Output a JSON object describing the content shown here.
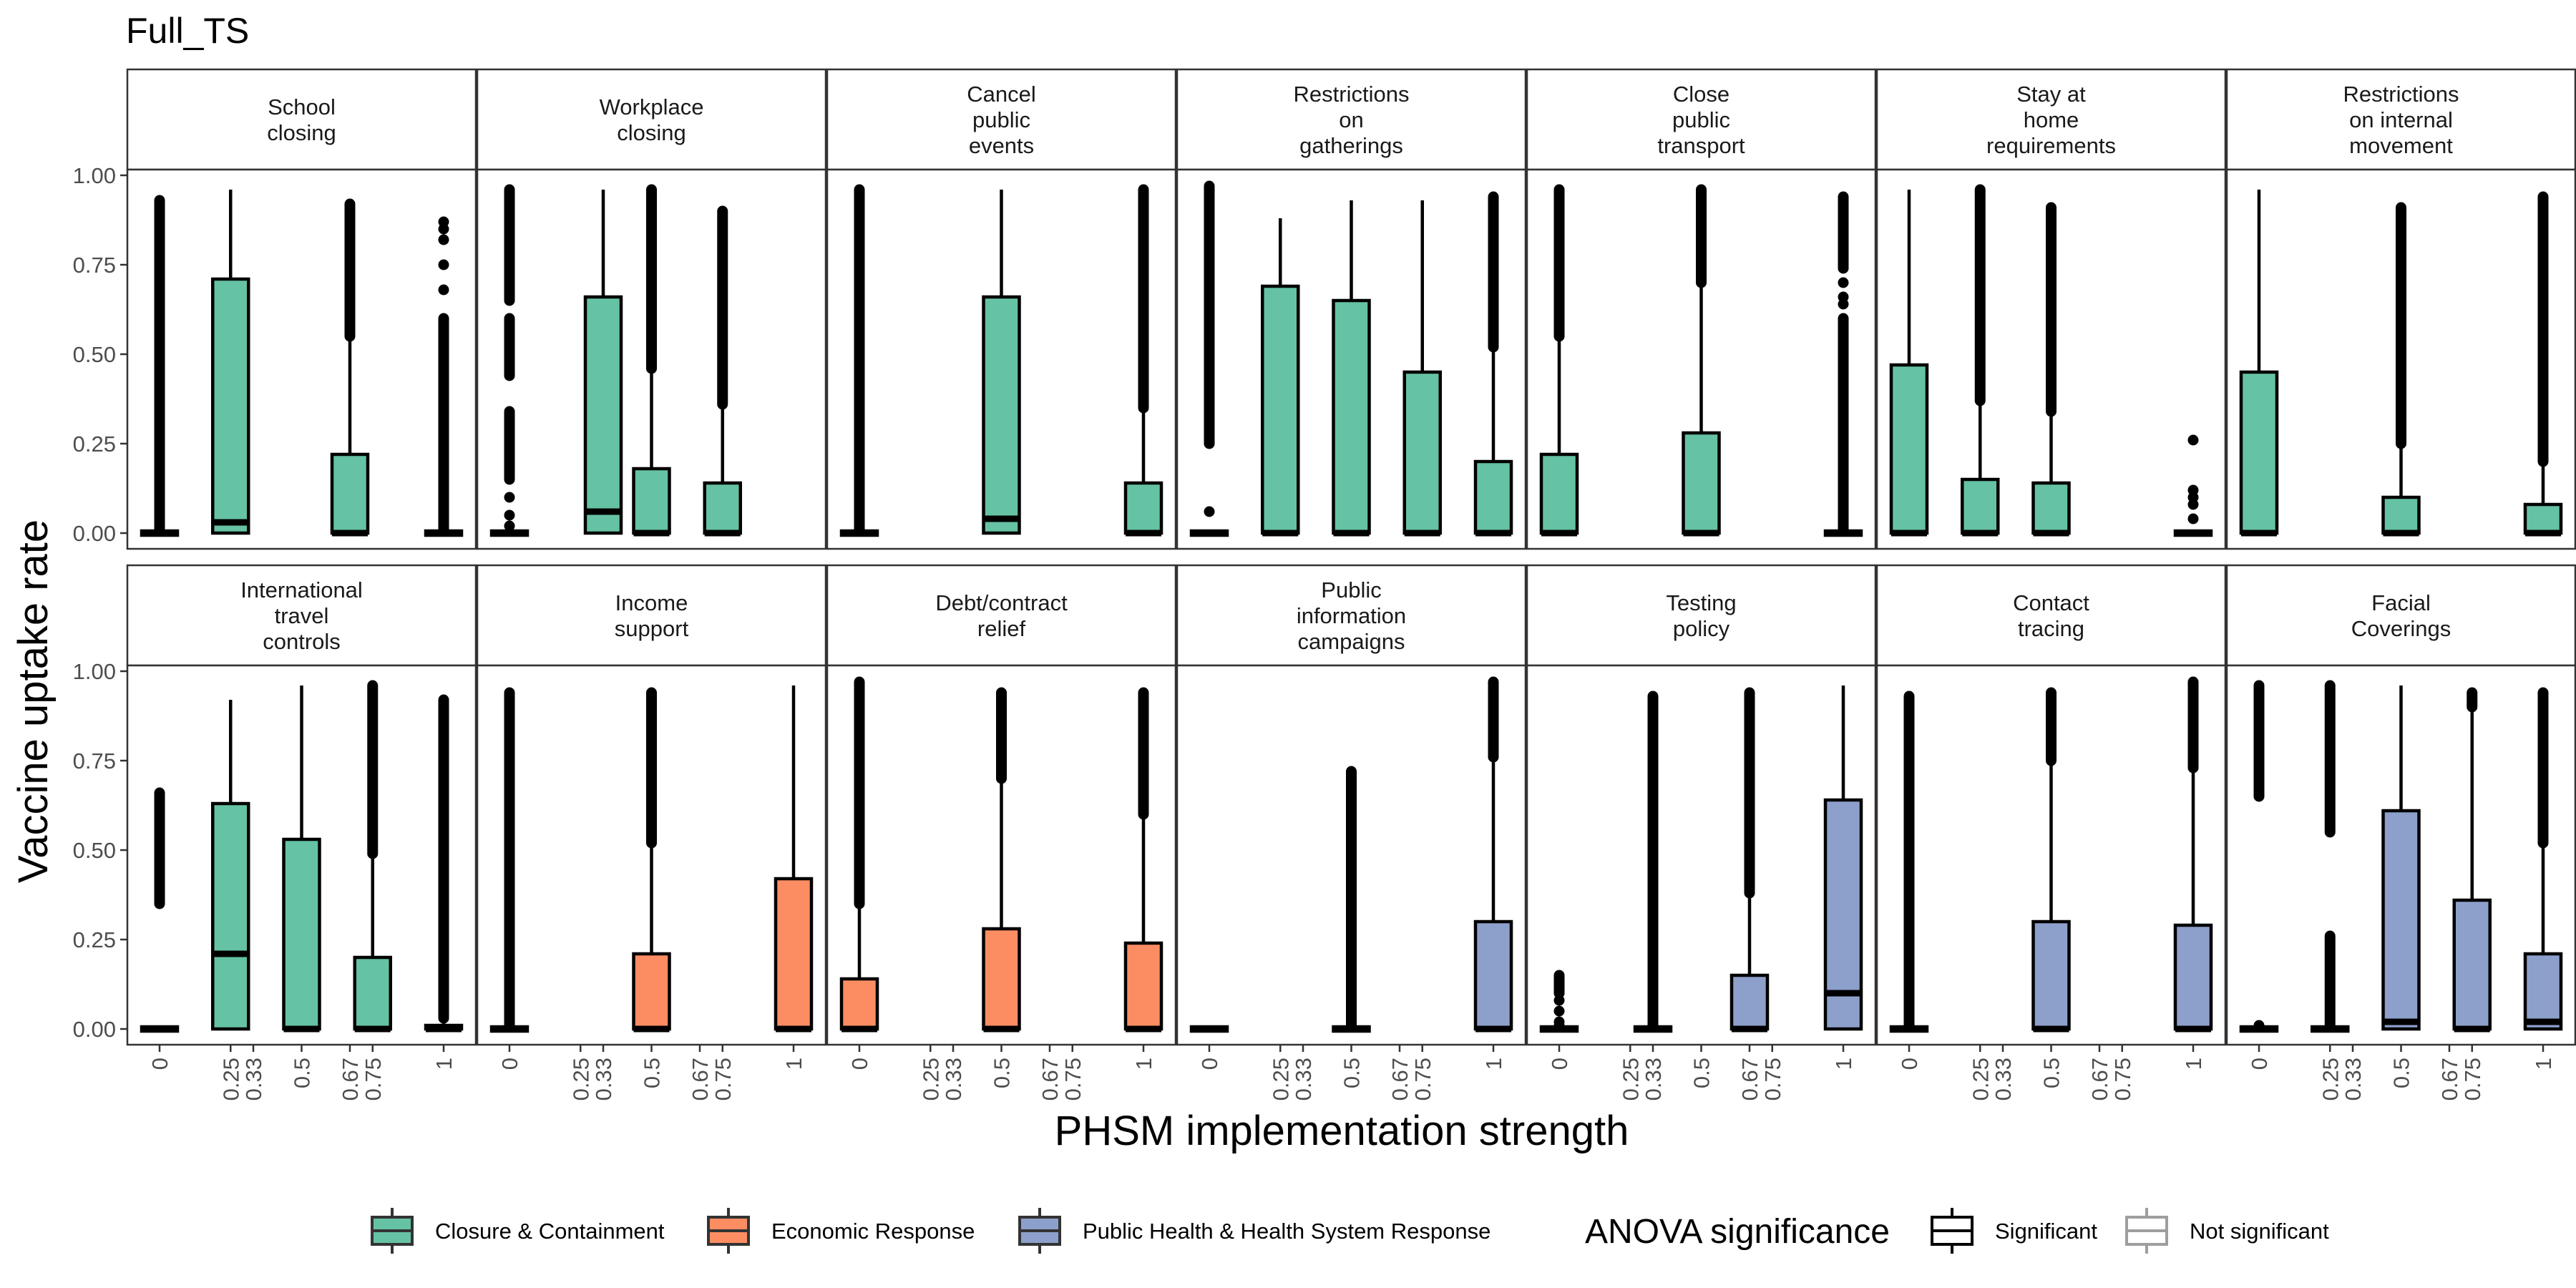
{
  "chart_data": {
    "type": "boxplot",
    "title": "Full_TS",
    "xlabel": "PHSM implementation strength",
    "ylabel": "Vaccine uptake rate",
    "ylim": [
      0,
      1
    ],
    "yticks": [
      "0.00",
      "0.25",
      "0.50",
      "0.75",
      "1.00"
    ],
    "xticks": [
      "0",
      "0.25",
      "0.33",
      "0.5",
      "0.67",
      "0.75",
      "1"
    ],
    "grid": false,
    "legend": {
      "position": "bottom",
      "fill_title": "",
      "fill_entries": [
        {
          "label": "Closure & Containment",
          "color": "#66C2A5"
        },
        {
          "label": "Economic Response",
          "color": "#FC8D62"
        },
        {
          "label": "Public Health & Health System Response",
          "color": "#8DA0CB"
        }
      ],
      "outline_title": "ANOVA significance",
      "outline_entries": [
        {
          "label": "Significant",
          "color": "#000000"
        },
        {
          "label": "Not significant",
          "color": "#9E9E9E"
        }
      ]
    },
    "panels": [
      {
        "title": [
          "School",
          "closing"
        ],
        "color": "#66C2A5",
        "boxes": [
          {
            "x": "0",
            "q1": 0,
            "med": 0,
            "q3": 0,
            "lo": 0,
            "hi": 0,
            "out": [
              [
                0.01,
                0.93
              ]
            ]
          },
          {
            "x": "0.25",
            "q1": 0,
            "med": 0.03,
            "q3": 0.71,
            "lo": 0,
            "hi": 0.96,
            "out": []
          },
          {
            "x": "0.67",
            "q1": 0,
            "med": 0,
            "q3": 0.22,
            "lo": 0,
            "hi": 0.55,
            "out": [
              [
                0.55,
                0.92
              ]
            ]
          },
          {
            "x": "1",
            "q1": 0,
            "med": 0,
            "q3": 0,
            "lo": 0,
            "hi": 0,
            "out": [
              [
                0.01,
                0.6
              ],
              0.68,
              0.75,
              0.82,
              0.85,
              0.87
            ]
          }
        ]
      },
      {
        "title": [
          "Workplace",
          "closing"
        ],
        "color": "#66C2A5",
        "boxes": [
          {
            "x": "0",
            "q1": 0,
            "med": 0,
            "q3": 0,
            "lo": 0,
            "hi": 0,
            "out": [
              0.02,
              0.05,
              0.1,
              [
                0.15,
                0.34
              ],
              [
                0.44,
                0.6
              ],
              [
                0.65,
                0.96
              ]
            ]
          },
          {
            "x": "0.33",
            "q1": 0,
            "med": 0.06,
            "q3": 0.66,
            "lo": 0,
            "hi": 0.96,
            "out": []
          },
          {
            "x": "0.5",
            "q1": 0,
            "med": 0,
            "q3": 0.18,
            "lo": 0,
            "hi": 0.46,
            "out": [
              [
                0.46,
                0.96
              ]
            ]
          },
          {
            "x": "0.75",
            "q1": 0,
            "med": 0,
            "q3": 0.14,
            "lo": 0,
            "hi": 0.36,
            "out": [
              [
                0.36,
                0.9
              ]
            ]
          }
        ]
      },
      {
        "title": [
          "Cancel",
          "public",
          "events"
        ],
        "color": "#66C2A5",
        "boxes": [
          {
            "x": "0",
            "q1": 0,
            "med": 0,
            "q3": 0,
            "lo": 0,
            "hi": 0,
            "out": [
              [
                0.01,
                0.96
              ]
            ]
          },
          {
            "x": "0.5",
            "q1": 0,
            "med": 0.04,
            "q3": 0.66,
            "lo": 0,
            "hi": 0.96,
            "out": []
          },
          {
            "x": "1",
            "q1": 0,
            "med": 0,
            "q3": 0.14,
            "lo": 0,
            "hi": 0.35,
            "out": [
              [
                0.35,
                0.96
              ]
            ]
          }
        ]
      },
      {
        "title": [
          "Restrictions",
          "on",
          "gatherings"
        ],
        "color": "#66C2A5",
        "boxes": [
          {
            "x": "0",
            "q1": 0,
            "med": 0,
            "q3": 0,
            "lo": 0,
            "hi": 0,
            "out": [
              0.06,
              [
                0.25,
                0.97
              ]
            ]
          },
          {
            "x": "0.25",
            "q1": 0,
            "med": 0,
            "q3": 0.69,
            "lo": 0,
            "hi": 0.88,
            "out": []
          },
          {
            "x": "0.5",
            "q1": 0,
            "med": 0,
            "q3": 0.65,
            "lo": 0,
            "hi": 0.93,
            "out": []
          },
          {
            "x": "0.75",
            "q1": 0,
            "med": 0,
            "q3": 0.45,
            "lo": 0,
            "hi": 0.93,
            "out": []
          },
          {
            "x": "1",
            "q1": 0,
            "med": 0,
            "q3": 0.2,
            "lo": 0,
            "hi": 0.52,
            "out": [
              [
                0.52,
                0.94
              ]
            ]
          }
        ]
      },
      {
        "title": [
          "Close",
          "public",
          "transport"
        ],
        "color": "#66C2A5",
        "boxes": [
          {
            "x": "0",
            "q1": 0,
            "med": 0,
            "q3": 0.22,
            "lo": 0,
            "hi": 0.55,
            "out": [
              [
                0.55,
                0.96
              ]
            ]
          },
          {
            "x": "0.5",
            "q1": 0,
            "med": 0,
            "q3": 0.28,
            "lo": 0,
            "hi": 0.7,
            "out": [
              [
                0.7,
                0.96
              ]
            ]
          },
          {
            "x": "1",
            "q1": 0,
            "med": 0,
            "q3": 0,
            "lo": 0,
            "hi": 0,
            "out": [
              [
                0.01,
                0.6
              ],
              0.64,
              0.66,
              0.7,
              [
                0.74,
                0.94
              ]
            ]
          }
        ]
      },
      {
        "title": [
          "Stay at",
          "home",
          "requirements"
        ],
        "color": "#66C2A5",
        "boxes": [
          {
            "x": "0",
            "q1": 0,
            "med": 0,
            "q3": 0.47,
            "lo": 0,
            "hi": 0.96,
            "out": []
          },
          {
            "x": "0.25",
            "q1": 0,
            "med": 0,
            "q3": 0.15,
            "lo": 0,
            "hi": 0.37,
            "out": [
              [
                0.37,
                0.96
              ]
            ]
          },
          {
            "x": "0.5",
            "q1": 0,
            "med": 0,
            "q3": 0.14,
            "lo": 0,
            "hi": 0.34,
            "out": [
              [
                0.34,
                0.91
              ]
            ]
          },
          {
            "x": "1",
            "q1": 0,
            "med": 0,
            "q3": 0,
            "lo": 0,
            "hi": 0,
            "out": [
              0.04,
              0.08,
              0.1,
              0.12,
              0.26
            ]
          }
        ]
      },
      {
        "title": [
          "Restrictions",
          "on internal",
          "movement"
        ],
        "color": "#66C2A5",
        "boxes": [
          {
            "x": "0",
            "q1": 0,
            "med": 0,
            "q3": 0.45,
            "lo": 0,
            "hi": 0.96,
            "out": []
          },
          {
            "x": "0.5",
            "q1": 0,
            "med": 0,
            "q3": 0.1,
            "lo": 0,
            "hi": 0.25,
            "out": [
              [
                0.25,
                0.91
              ]
            ]
          },
          {
            "x": "1",
            "q1": 0,
            "med": 0,
            "q3": 0.08,
            "lo": 0,
            "hi": 0.2,
            "out": [
              [
                0.2,
                0.94
              ]
            ]
          }
        ]
      },
      {
        "title": [
          "International",
          "travel",
          "controls"
        ],
        "color": "#66C2A5",
        "boxes": [
          {
            "x": "0",
            "q1": 0,
            "med": 0,
            "q3": 0,
            "lo": 0,
            "hi": 0,
            "out": [
              [
                0.35,
                0.66
              ]
            ]
          },
          {
            "x": "0.25",
            "q1": 0,
            "med": 0.21,
            "q3": 0.63,
            "lo": 0,
            "hi": 0.92,
            "out": []
          },
          {
            "x": "0.5",
            "q1": 0,
            "med": 0,
            "q3": 0.53,
            "lo": 0,
            "hi": 0.96,
            "out": []
          },
          {
            "x": "0.75",
            "q1": 0,
            "med": 0,
            "q3": 0.2,
            "lo": 0,
            "hi": 0.49,
            "out": [
              [
                0.49,
                0.96
              ]
            ]
          },
          {
            "x": "1",
            "q1": 0,
            "med": 0,
            "q3": 0.01,
            "lo": 0,
            "hi": 0.03,
            "out": [
              [
                0.03,
                0.92
              ]
            ]
          }
        ]
      },
      {
        "title": [
          "Income",
          "support"
        ],
        "color": "#FC8D62",
        "boxes": [
          {
            "x": "0",
            "q1": 0,
            "med": 0,
            "q3": 0,
            "lo": 0,
            "hi": 0,
            "out": [
              [
                0.01,
                0.94
              ]
            ]
          },
          {
            "x": "0.5",
            "q1": 0,
            "med": 0,
            "q3": 0.21,
            "lo": 0,
            "hi": 0.52,
            "out": [
              [
                0.52,
                0.94
              ]
            ]
          },
          {
            "x": "1",
            "q1": 0,
            "med": 0,
            "q3": 0.42,
            "lo": 0,
            "hi": 0.96,
            "out": []
          }
        ]
      },
      {
        "title": [
          "Debt/contract",
          "relief"
        ],
        "color": "#FC8D62",
        "boxes": [
          {
            "x": "0",
            "q1": 0,
            "med": 0,
            "q3": 0.14,
            "lo": 0,
            "hi": 0.35,
            "out": [
              [
                0.35,
                0.97
              ]
            ]
          },
          {
            "x": "0.5",
            "q1": 0,
            "med": 0,
            "q3": 0.28,
            "lo": 0,
            "hi": 0.7,
            "out": [
              [
                0.7,
                0.94
              ]
            ]
          },
          {
            "x": "1",
            "q1": 0,
            "med": 0,
            "q3": 0.24,
            "lo": 0,
            "hi": 0.6,
            "out": [
              [
                0.6,
                0.94
              ]
            ]
          }
        ]
      },
      {
        "title": [
          "Public",
          "information",
          "campaigns"
        ],
        "color": "#8DA0CB",
        "boxes": [
          {
            "x": "0",
            "q1": 0,
            "med": 0,
            "q3": 0,
            "lo": 0,
            "hi": 0,
            "out": []
          },
          {
            "x": "0.5",
            "q1": 0,
            "med": 0,
            "q3": 0,
            "lo": 0,
            "hi": 0,
            "out": [
              [
                0.01,
                0.72
              ]
            ]
          },
          {
            "x": "1",
            "q1": 0,
            "med": 0,
            "q3": 0.3,
            "lo": 0,
            "hi": 0.76,
            "out": [
              [
                0.76,
                0.97
              ]
            ]
          }
        ]
      },
      {
        "title": [
          "Testing",
          "policy"
        ],
        "color": "#8DA0CB",
        "boxes": [
          {
            "x": "0",
            "q1": 0,
            "med": 0,
            "q3": 0,
            "lo": 0,
            "hi": 0,
            "out": [
              0.01,
              0.02,
              0.05,
              0.08,
              [
                0.1,
                0.15
              ]
            ]
          },
          {
            "x": "0.33",
            "q1": 0,
            "med": 0,
            "q3": 0,
            "lo": 0,
            "hi": 0,
            "out": [
              [
                0.01,
                0.93
              ]
            ]
          },
          {
            "x": "0.67",
            "q1": 0,
            "med": 0,
            "q3": 0.15,
            "lo": 0,
            "hi": 0.38,
            "out": [
              [
                0.38,
                0.94
              ]
            ]
          },
          {
            "x": "1",
            "q1": 0,
            "med": 0.1,
            "q3": 0.64,
            "lo": 0,
            "hi": 0.96,
            "out": []
          }
        ]
      },
      {
        "title": [
          "Contact",
          "tracing"
        ],
        "color": "#8DA0CB",
        "boxes": [
          {
            "x": "0",
            "q1": 0,
            "med": 0,
            "q3": 0,
            "lo": 0,
            "hi": 0,
            "out": [
              [
                0.01,
                0.93
              ]
            ]
          },
          {
            "x": "0.5",
            "q1": 0,
            "med": 0,
            "q3": 0.3,
            "lo": 0,
            "hi": 0.75,
            "out": [
              [
                0.75,
                0.94
              ]
            ]
          },
          {
            "x": "1",
            "q1": 0,
            "med": 0,
            "q3": 0.29,
            "lo": 0,
            "hi": 0.73,
            "out": [
              [
                0.73,
                0.97
              ]
            ]
          }
        ]
      },
      {
        "title": [
          "Facial",
          "Coverings"
        ],
        "color": "#8DA0CB",
        "boxes": [
          {
            "x": "0",
            "q1": 0,
            "med": 0,
            "q3": 0,
            "lo": 0,
            "hi": 0,
            "out": [
              0.01,
              [
                0.65,
                0.96
              ]
            ]
          },
          {
            "x": "0.25",
            "q1": 0,
            "med": 0,
            "q3": 0,
            "lo": 0,
            "hi": 0,
            "out": [
              [
                0.01,
                0.26
              ],
              [
                0.55,
                0.96
              ]
            ]
          },
          {
            "x": "0.5",
            "q1": 0,
            "med": 0.02,
            "q3": 0.61,
            "lo": 0,
            "hi": 0.96,
            "out": []
          },
          {
            "x": "0.75",
            "q1": 0,
            "med": 0,
            "q3": 0.36,
            "lo": 0,
            "hi": 0.9,
            "out": [
              [
                0.9,
                0.94
              ]
            ]
          },
          {
            "x": "1",
            "q1": 0,
            "med": 0.02,
            "q3": 0.21,
            "lo": 0,
            "hi": 0.52,
            "out": [
              [
                0.52,
                0.94
              ]
            ]
          }
        ]
      }
    ]
  }
}
